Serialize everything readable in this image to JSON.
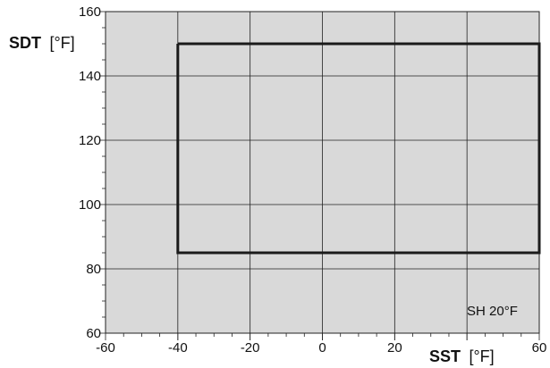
{
  "chart_data": {
    "type": "line",
    "title": "",
    "xlabel": {
      "name": "SST",
      "unit": "[°F]"
    },
    "ylabel": {
      "name": "SDT",
      "unit": "[°F]"
    },
    "xlim": [
      -60,
      60
    ],
    "ylim": [
      60,
      160
    ],
    "x_ticks": [
      -60,
      -40,
      -20,
      0,
      20,
      60
    ],
    "y_ticks": [
      60,
      80,
      100,
      120,
      140,
      160
    ],
    "x_gridlines": [
      -40,
      -20,
      0,
      20,
      40
    ],
    "y_gridlines": [
      80,
      100,
      120,
      140
    ],
    "grid": true,
    "legend": "none",
    "series": [
      {
        "closed": true,
        "x": [
          -40,
          60,
          60,
          -40,
          -40
        ],
        "y": [
          150,
          150,
          85,
          85,
          150
        ]
      }
    ],
    "annotations": [
      {
        "text": "SH 20°F",
        "x": 47,
        "y": 67
      }
    ],
    "colors": {
      "plot_background": "#d9d9d9",
      "grid": "#222222",
      "envelope": "#1a1a1a"
    }
  }
}
